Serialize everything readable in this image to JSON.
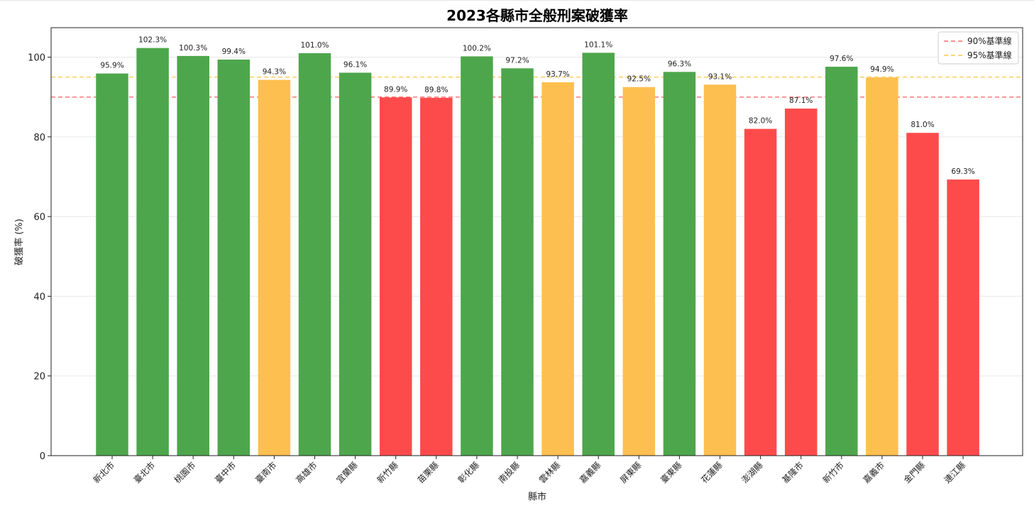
{
  "chart_data": {
    "type": "bar",
    "title": "2023各縣市全般刑案破獲率",
    "xlabel": "縣市",
    "ylabel": "破獲率 (%)",
    "ylim": [
      0,
      107.4
    ],
    "yticks": [
      0,
      20,
      40,
      60,
      80,
      100
    ],
    "grid": true,
    "legend_position": "top-right",
    "categories": [
      "新北市",
      "臺北市",
      "桃園市",
      "臺中市",
      "臺南市",
      "高雄市",
      "宜蘭縣",
      "新竹縣",
      "苗栗縣",
      "彰化縣",
      "南投縣",
      "雲林縣",
      "嘉義縣",
      "屏東縣",
      "臺東縣",
      "花蓮縣",
      "澎湖縣",
      "基隆市",
      "新竹市",
      "嘉義市",
      "金門縣",
      "連江縣"
    ],
    "values": [
      95.9,
      102.3,
      100.3,
      99.4,
      94.3,
      101.0,
      96.1,
      89.9,
      89.8,
      100.2,
      97.2,
      93.7,
      101.1,
      92.5,
      96.3,
      93.1,
      82.0,
      87.1,
      97.6,
      94.9,
      81.0,
      69.3
    ],
    "data_labels": [
      "95.9%",
      "102.3%",
      "100.3%",
      "99.4%",
      "94.3%",
      "101.0%",
      "96.1%",
      "89.9%",
      "89.8%",
      "100.2%",
      "97.2%",
      "93.7%",
      "101.1%",
      "92.5%",
      "96.3%",
      "93.1%",
      "82.0%",
      "87.1%",
      "97.6%",
      "94.9%",
      "81.0%",
      "69.3%"
    ],
    "bar_colors": [
      "green",
      "green",
      "green",
      "green",
      "orange",
      "green",
      "green",
      "red",
      "red",
      "green",
      "green",
      "orange",
      "green",
      "orange",
      "green",
      "orange",
      "red",
      "red",
      "green",
      "orange",
      "red",
      "red"
    ],
    "reference_lines": [
      {
        "name": "90%基準線",
        "value": 90,
        "color": "#ff6b6b",
        "style": "dashed"
      },
      {
        "name": "95%基準線",
        "value": 95,
        "color": "#ffc94d",
        "style": "dashed"
      }
    ],
    "colors": {
      "green": "#4ea64c",
      "orange": "#fdbf4f",
      "red": "#fd4b4b"
    }
  }
}
